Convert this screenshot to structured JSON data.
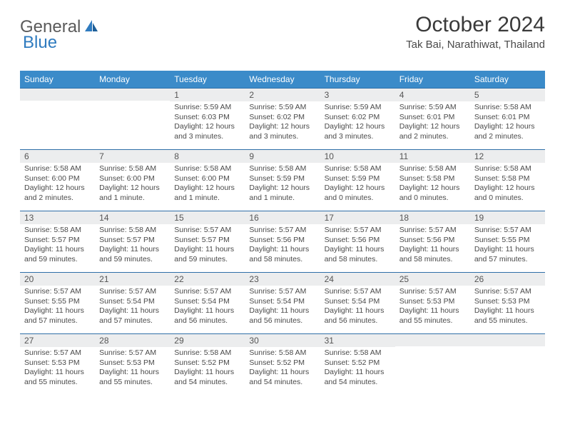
{
  "logo": {
    "text1": "General",
    "text2": "Blue"
  },
  "title": "October 2024",
  "location": "Tak Bai, Narathiwat, Thailand",
  "colors": {
    "header_bg": "#3b8bc9",
    "header_text": "#ffffff",
    "daynum_bg": "#ecedee",
    "week_divider": "#2f6fa8",
    "logo_gray": "#5a5a5a",
    "logo_blue": "#2f7bbf",
    "body_text": "#4a4a4a"
  },
  "day_labels": [
    "Sunday",
    "Monday",
    "Tuesday",
    "Wednesday",
    "Thursday",
    "Friday",
    "Saturday"
  ],
  "weeks": [
    [
      {
        "n": "",
        "sunrise": "",
        "sunset": "",
        "daylight": ""
      },
      {
        "n": "",
        "sunrise": "",
        "sunset": "",
        "daylight": ""
      },
      {
        "n": "1",
        "sunrise": "Sunrise: 5:59 AM",
        "sunset": "Sunset: 6:03 PM",
        "daylight": "Daylight: 12 hours and 3 minutes."
      },
      {
        "n": "2",
        "sunrise": "Sunrise: 5:59 AM",
        "sunset": "Sunset: 6:02 PM",
        "daylight": "Daylight: 12 hours and 3 minutes."
      },
      {
        "n": "3",
        "sunrise": "Sunrise: 5:59 AM",
        "sunset": "Sunset: 6:02 PM",
        "daylight": "Daylight: 12 hours and 3 minutes."
      },
      {
        "n": "4",
        "sunrise": "Sunrise: 5:59 AM",
        "sunset": "Sunset: 6:01 PM",
        "daylight": "Daylight: 12 hours and 2 minutes."
      },
      {
        "n": "5",
        "sunrise": "Sunrise: 5:58 AM",
        "sunset": "Sunset: 6:01 PM",
        "daylight": "Daylight: 12 hours and 2 minutes."
      }
    ],
    [
      {
        "n": "6",
        "sunrise": "Sunrise: 5:58 AM",
        "sunset": "Sunset: 6:00 PM",
        "daylight": "Daylight: 12 hours and 2 minutes."
      },
      {
        "n": "7",
        "sunrise": "Sunrise: 5:58 AM",
        "sunset": "Sunset: 6:00 PM",
        "daylight": "Daylight: 12 hours and 1 minute."
      },
      {
        "n": "8",
        "sunrise": "Sunrise: 5:58 AM",
        "sunset": "Sunset: 6:00 PM",
        "daylight": "Daylight: 12 hours and 1 minute."
      },
      {
        "n": "9",
        "sunrise": "Sunrise: 5:58 AM",
        "sunset": "Sunset: 5:59 PM",
        "daylight": "Daylight: 12 hours and 1 minute."
      },
      {
        "n": "10",
        "sunrise": "Sunrise: 5:58 AM",
        "sunset": "Sunset: 5:59 PM",
        "daylight": "Daylight: 12 hours and 0 minutes."
      },
      {
        "n": "11",
        "sunrise": "Sunrise: 5:58 AM",
        "sunset": "Sunset: 5:58 PM",
        "daylight": "Daylight: 12 hours and 0 minutes."
      },
      {
        "n": "12",
        "sunrise": "Sunrise: 5:58 AM",
        "sunset": "Sunset: 5:58 PM",
        "daylight": "Daylight: 12 hours and 0 minutes."
      }
    ],
    [
      {
        "n": "13",
        "sunrise": "Sunrise: 5:58 AM",
        "sunset": "Sunset: 5:57 PM",
        "daylight": "Daylight: 11 hours and 59 minutes."
      },
      {
        "n": "14",
        "sunrise": "Sunrise: 5:58 AM",
        "sunset": "Sunset: 5:57 PM",
        "daylight": "Daylight: 11 hours and 59 minutes."
      },
      {
        "n": "15",
        "sunrise": "Sunrise: 5:57 AM",
        "sunset": "Sunset: 5:57 PM",
        "daylight": "Daylight: 11 hours and 59 minutes."
      },
      {
        "n": "16",
        "sunrise": "Sunrise: 5:57 AM",
        "sunset": "Sunset: 5:56 PM",
        "daylight": "Daylight: 11 hours and 58 minutes."
      },
      {
        "n": "17",
        "sunrise": "Sunrise: 5:57 AM",
        "sunset": "Sunset: 5:56 PM",
        "daylight": "Daylight: 11 hours and 58 minutes."
      },
      {
        "n": "18",
        "sunrise": "Sunrise: 5:57 AM",
        "sunset": "Sunset: 5:56 PM",
        "daylight": "Daylight: 11 hours and 58 minutes."
      },
      {
        "n": "19",
        "sunrise": "Sunrise: 5:57 AM",
        "sunset": "Sunset: 5:55 PM",
        "daylight": "Daylight: 11 hours and 57 minutes."
      }
    ],
    [
      {
        "n": "20",
        "sunrise": "Sunrise: 5:57 AM",
        "sunset": "Sunset: 5:55 PM",
        "daylight": "Daylight: 11 hours and 57 minutes."
      },
      {
        "n": "21",
        "sunrise": "Sunrise: 5:57 AM",
        "sunset": "Sunset: 5:54 PM",
        "daylight": "Daylight: 11 hours and 57 minutes."
      },
      {
        "n": "22",
        "sunrise": "Sunrise: 5:57 AM",
        "sunset": "Sunset: 5:54 PM",
        "daylight": "Daylight: 11 hours and 56 minutes."
      },
      {
        "n": "23",
        "sunrise": "Sunrise: 5:57 AM",
        "sunset": "Sunset: 5:54 PM",
        "daylight": "Daylight: 11 hours and 56 minutes."
      },
      {
        "n": "24",
        "sunrise": "Sunrise: 5:57 AM",
        "sunset": "Sunset: 5:54 PM",
        "daylight": "Daylight: 11 hours and 56 minutes."
      },
      {
        "n": "25",
        "sunrise": "Sunrise: 5:57 AM",
        "sunset": "Sunset: 5:53 PM",
        "daylight": "Daylight: 11 hours and 55 minutes."
      },
      {
        "n": "26",
        "sunrise": "Sunrise: 5:57 AM",
        "sunset": "Sunset: 5:53 PM",
        "daylight": "Daylight: 11 hours and 55 minutes."
      }
    ],
    [
      {
        "n": "27",
        "sunrise": "Sunrise: 5:57 AM",
        "sunset": "Sunset: 5:53 PM",
        "daylight": "Daylight: 11 hours and 55 minutes."
      },
      {
        "n": "28",
        "sunrise": "Sunrise: 5:57 AM",
        "sunset": "Sunset: 5:53 PM",
        "daylight": "Daylight: 11 hours and 55 minutes."
      },
      {
        "n": "29",
        "sunrise": "Sunrise: 5:58 AM",
        "sunset": "Sunset: 5:52 PM",
        "daylight": "Daylight: 11 hours and 54 minutes."
      },
      {
        "n": "30",
        "sunrise": "Sunrise: 5:58 AM",
        "sunset": "Sunset: 5:52 PM",
        "daylight": "Daylight: 11 hours and 54 minutes."
      },
      {
        "n": "31",
        "sunrise": "Sunrise: 5:58 AM",
        "sunset": "Sunset: 5:52 PM",
        "daylight": "Daylight: 11 hours and 54 minutes."
      },
      {
        "n": "",
        "sunrise": "",
        "sunset": "",
        "daylight": ""
      },
      {
        "n": "",
        "sunrise": "",
        "sunset": "",
        "daylight": ""
      }
    ]
  ]
}
